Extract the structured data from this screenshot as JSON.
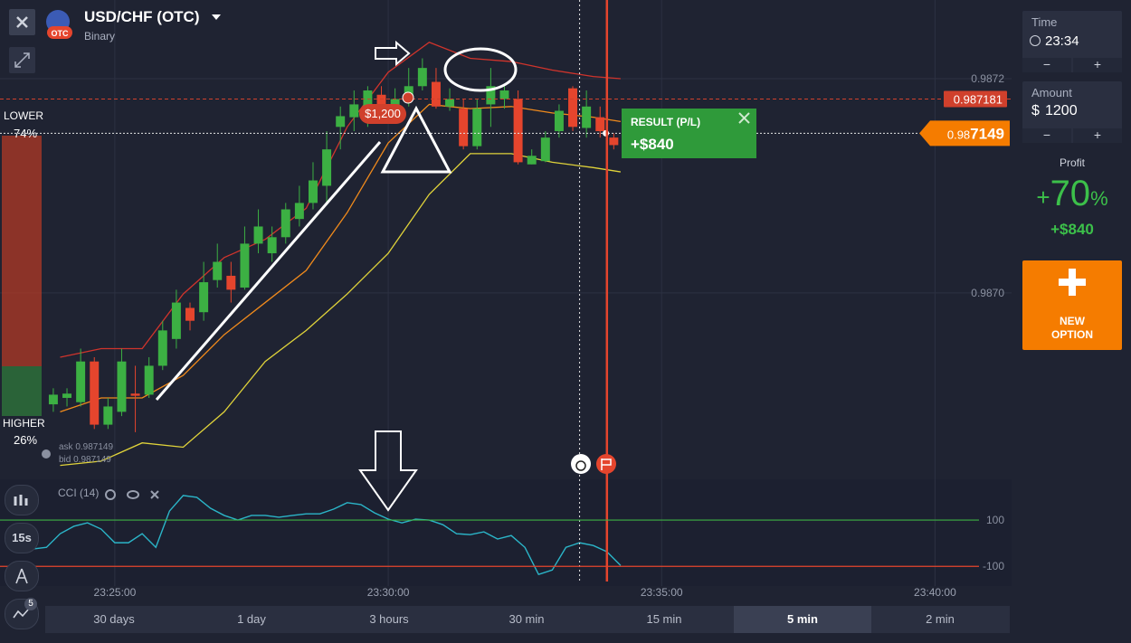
{
  "header": {
    "title": "USD/CHF (OTC)",
    "subtitle": "Binary",
    "badge": "OTC"
  },
  "sentiment": {
    "lower_label": "LOWER",
    "lower_pct": "74%",
    "higher_label": "HIGHER",
    "higher_pct": "26%"
  },
  "quote": {
    "ask": "ask 0.987149",
    "bid": "bid 0.987149"
  },
  "trade": {
    "investment": "$1,200",
    "result_title": "RESULT (P/L)",
    "result_value": "+$840"
  },
  "chart_data": [
    {
      "type": "candlestick",
      "candle_period": {
        "value": 15,
        "label": "15s"
      },
      "x": [
        84225,
        84240,
        84255,
        84270,
        84285,
        84300,
        84315,
        84330,
        84345,
        84360,
        84375,
        84390,
        84405,
        84420,
        84435,
        84450,
        84465,
        84480,
        84495,
        84510,
        84525,
        84540,
        84555,
        84570,
        84585,
        84600,
        84615,
        84630,
        84645,
        84660,
        84675,
        84690,
        84705,
        84720,
        84735,
        84750,
        84765,
        84780,
        84795,
        84810,
        84825,
        84840
      ],
      "open": [
        0.986896,
        0.986902,
        0.986898,
        0.986936,
        0.986877,
        0.986889,
        0.986906,
        0.986905,
        0.986932,
        0.986957,
        0.986986,
        0.986982,
        0.987012,
        0.987016,
        0.987005,
        0.987046,
        0.987037,
        0.987052,
        0.987069,
        0.987084,
        0.9871,
        0.987155,
        0.987164,
        0.987172,
        0.987185,
        0.987174,
        0.987181,
        0.987193,
        0.987197,
        0.987174,
        0.987172,
        0.987137,
        0.987176,
        0.987181,
        0.987181,
        0.98712,
        0.987123,
        0.987151,
        0.987191,
        0.987154,
        0.987164,
        0.987145
      ],
      "high": [
        0.986911,
        0.986911,
        0.986948,
        0.98694,
        0.986902,
        0.986948,
        0.986932,
        0.98694,
        0.986974,
        0.987003,
        0.986991,
        0.987029,
        0.987046,
        0.987029,
        0.987062,
        0.987078,
        0.987062,
        0.987084,
        0.9871,
        0.987122,
        0.987151,
        0.987174,
        0.987189,
        0.987193,
        0.987193,
        0.987191,
        0.98721,
        0.987219,
        0.98721,
        0.987191,
        0.987181,
        0.987181,
        0.98721,
        0.987193,
        0.987189,
        0.987134,
        0.987151,
        0.987176,
        0.987193,
        0.987189,
        0.987174,
        0.987149
      ],
      "low": [
        0.986889,
        0.986894,
        0.986894,
        0.986873,
        0.986873,
        0.986885,
        0.98687,
        0.986902,
        0.986928,
        0.986948,
        0.986965,
        0.986974,
        0.987005,
        0.986991,
        0.987003,
        0.987037,
        0.987029,
        0.987046,
        0.987062,
        0.987078,
        0.987084,
        0.987134,
        0.987151,
        0.987155,
        0.987164,
        0.987165,
        0.987174,
        0.987189,
        0.987172,
        0.98717,
        0.987134,
        0.987134,
        0.987155,
        0.987172,
        0.98712,
        0.98712,
        0.987122,
        0.987145,
        0.987151,
        0.987145,
        0.987145,
        0.987134
      ],
      "close": [
        0.986905,
        0.986906,
        0.986936,
        0.986877,
        0.986894,
        0.986936,
        0.986904,
        0.986932,
        0.986965,
        0.986991,
        0.986974,
        0.98701,
        0.987029,
        0.987003,
        0.987046,
        0.987062,
        0.987052,
        0.987078,
        0.987084,
        0.987105,
        0.987134,
        0.987165,
        0.987176,
        0.987189,
        0.987176,
        0.987181,
        0.987193,
        0.98721,
        0.987174,
        0.987181,
        0.987137,
        0.987172,
        0.987193,
        0.987189,
        0.987122,
        0.987128,
        0.987145,
        0.98717,
        0.987155,
        0.987174,
        0.987151,
        0.987138
      ],
      "up_color": "#3cb043",
      "down_color": "#e5452d",
      "bands": {
        "x": [
          84240,
          84285,
          84330,
          84375,
          84420,
          84465,
          84510,
          84555,
          84600,
          84645,
          84690,
          84735,
          84780,
          84825,
          84855
        ],
        "upper": [
          0.98694,
          0.986948,
          0.986948,
          0.986999,
          0.987033,
          0.98705,
          0.987079,
          0.987155,
          0.987206,
          0.987234,
          0.987219,
          0.987216,
          0.987208,
          0.987202,
          0.9872
        ],
        "middle": [
          0.986889,
          0.986902,
          0.986902,
          0.986923,
          0.986961,
          0.986991,
          0.987021,
          0.987075,
          0.98714,
          0.987176,
          0.987172,
          0.987174,
          0.987168,
          0.987164,
          0.98716
        ],
        "lower": [
          0.986839,
          0.986843,
          0.98686,
          0.986856,
          0.986889,
          0.986936,
          0.986965,
          0.986999,
          0.987037,
          0.987092,
          0.98713,
          0.98713,
          0.987122,
          0.987117,
          0.987113
        ],
        "colors": {
          "upper": "#d0342c",
          "middle": "#f08a1c",
          "lower": "#e0d33a"
        }
      },
      "xlim": [
        84174,
        85284
      ],
      "xticks": [
        {
          "value": 84300,
          "label": "23:25:00"
        },
        {
          "value": 84600,
          "label": "23:30:00"
        },
        {
          "value": 84900,
          "label": "23:35:00"
        },
        {
          "value": 85200,
          "label": "23:40:00"
        }
      ],
      "ylim": [
        0.986826,
        0.987265
      ],
      "yticks": [
        0.9872,
        {
          "value": 0.987,
          "label": "0.9870"
        }
      ],
      "strike_price": 0.987181,
      "current_price": {
        "value": 0.987149,
        "label_prefix": "0.98",
        "label_suffix": "7149"
      },
      "purchase_time": 84810,
      "expiry_time": 84840
    },
    {
      "type": "line",
      "title": "CCI (14)",
      "x": [
        84210,
        84225,
        84240,
        84255,
        84270,
        84285,
        84300,
        84315,
        84330,
        84345,
        84360,
        84375,
        84390,
        84405,
        84420,
        84435,
        84450,
        84465,
        84480,
        84495,
        84510,
        84525,
        84540,
        84555,
        84570,
        84585,
        84600,
        84615,
        84630,
        84645,
        84660,
        84675,
        84690,
        84705,
        84720,
        84735,
        84750,
        84765,
        84780,
        84795,
        84810,
        84825,
        84840,
        84855
      ],
      "values": [
        -25,
        -18,
        41,
        73,
        88,
        61,
        2,
        2,
        41,
        -18,
        139,
        206,
        198,
        151,
        120,
        100,
        120,
        120,
        112,
        120,
        127,
        127,
        147,
        175,
        167,
        131,
        104,
        88,
        104,
        100,
        80,
        41,
        37,
        49,
        18,
        33,
        -18,
        -135,
        -116,
        -18,
        2,
        -10,
        -37,
        -96
      ],
      "color": "#2bb5c8",
      "xlim": [
        84174,
        85284
      ],
      "ylim": [
        -185,
        276
      ],
      "yticks": [
        100,
        -100
      ],
      "ytick_colors": [
        "#3cb043",
        "#e5452d"
      ]
    }
  ],
  "sidebar": {
    "time_label": "Time",
    "time_value": "23:34",
    "amount_label": "Amount",
    "currency": "$",
    "amount_value": "1200",
    "profit_label": "Profit",
    "profit_sign": "+",
    "profit_pct": "70",
    "profit_unit": "%",
    "profit_value": "+$840",
    "new_option": "NEW OPTION"
  },
  "tools": {
    "badge": "5"
  },
  "periods": {
    "items": [
      "30 days",
      "1 day",
      "3 hours",
      "30 min",
      "15 min",
      "5 min",
      "2 min"
    ],
    "active": 5
  }
}
